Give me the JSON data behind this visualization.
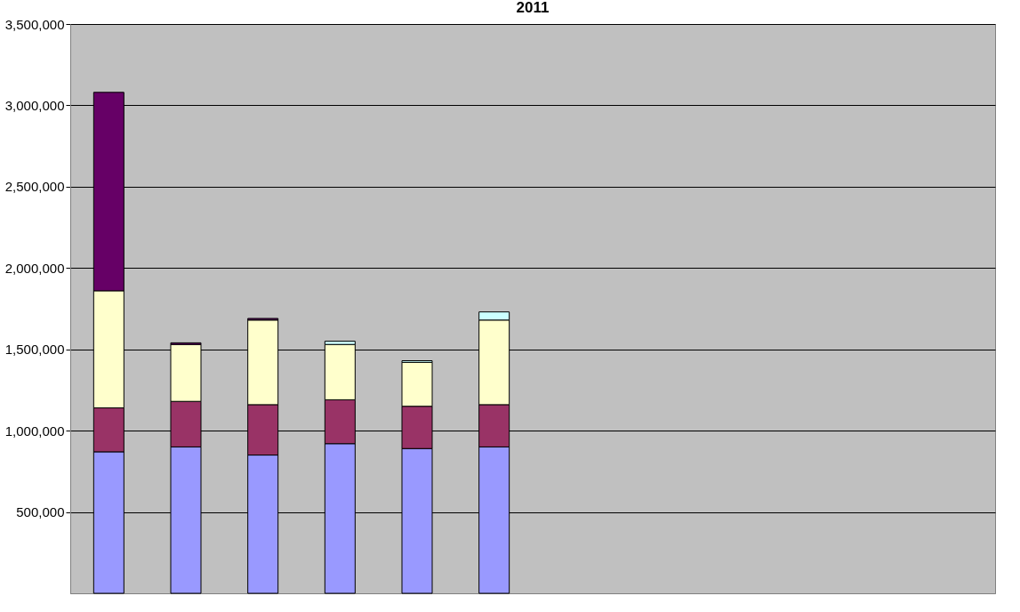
{
  "chart_data": {
    "type": "bar",
    "title": "2011",
    "stacked": true,
    "categories": [
      null,
      null,
      null,
      null,
      null,
      null,
      null,
      null,
      null,
      null,
      null,
      null
    ],
    "series": [
      {
        "color": "#9999ff",
        "values": [
          870000,
          900000,
          850000,
          920000,
          890000,
          900000,
          null,
          null,
          null,
          null,
          null,
          null
        ]
      },
      {
        "color": "#993366",
        "values": [
          270000,
          280000,
          310000,
          270000,
          260000,
          260000,
          null,
          null,
          null,
          null,
          null,
          null
        ]
      },
      {
        "color": "#ffffcc",
        "values": [
          720000,
          350000,
          520000,
          340000,
          270000,
          520000,
          null,
          null,
          null,
          null,
          null,
          null
        ]
      },
      {
        "color": "#660066",
        "values": [
          1220000,
          10000,
          10000,
          null,
          null,
          null,
          null,
          null,
          null,
          null,
          null,
          null
        ]
      },
      {
        "color": "#ccffff",
        "values": [
          null,
          null,
          null,
          20000,
          10000,
          50000,
          null,
          null,
          null,
          null,
          null,
          null
        ]
      }
    ],
    "ylim": [
      0,
      3500000
    ],
    "yticks": [
      {
        "value": 500000,
        "label": "500,000"
      },
      {
        "value": 1000000,
        "label": "1,000,000"
      },
      {
        "value": 1500000,
        "label": "1,500,000"
      },
      {
        "value": 2000000,
        "label": "2,000,000"
      },
      {
        "value": 2500000,
        "label": "2,500,000"
      },
      {
        "value": 3000000,
        "label": "3,000,000"
      },
      {
        "value": 3500000,
        "label": "3,500,000"
      }
    ],
    "grid": "y",
    "tick_labels": "y",
    "legend": false
  }
}
